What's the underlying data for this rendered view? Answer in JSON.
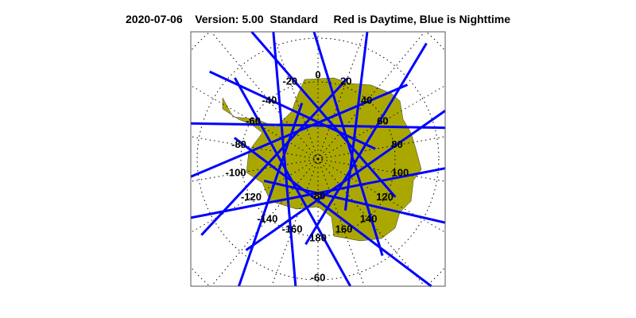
{
  "title": {
    "date": "2020-07-06",
    "version": "Version: 5.00",
    "mode": "Standard",
    "legend_text": "Red is Daytime, Blue is Nighttime"
  },
  "map": {
    "projection": "south polar stereographic",
    "land_color": "#aaa800",
    "track_color": "#0000ff",
    "daytime_color": "#ff0000",
    "longitude_labels": [
      "0",
      "20",
      "40",
      "60",
      "80",
      "100",
      "120",
      "140",
      "160",
      "180",
      "-160",
      "-140",
      "-120",
      "-100",
      "-80",
      "-60",
      "-40",
      "-20"
    ],
    "latitude_labels": [
      "-80",
      "-60"
    ]
  }
}
